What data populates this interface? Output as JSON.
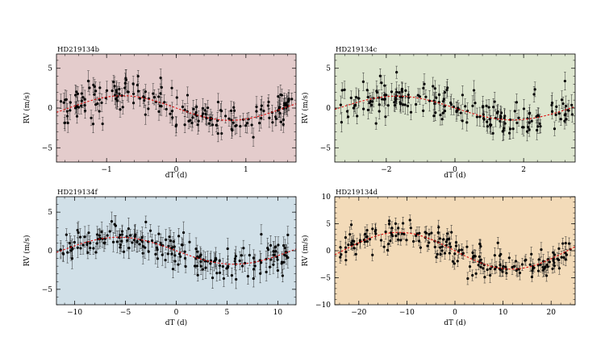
{
  "figure": {
    "description_note": "Four phase-folded radial velocity panels",
    "colors": {
      "panel_b_bg": "#e4cccc",
      "panel_c_bg": "#dde6cf",
      "panel_f_bg": "#d1e0e8",
      "panel_d_bg": "#f3dbb9",
      "points": "#000000",
      "model": "#dd1111"
    }
  },
  "chart_data": [
    {
      "id": "b",
      "type": "scatter",
      "title": "HD219134b",
      "xlabel": "dT (d)",
      "ylabel": "RV (m/s)",
      "xlim": [
        -1.72,
        1.72
      ],
      "ylim": [
        -6.8,
        6.8
      ],
      "xticks": [
        -1,
        0,
        1
      ],
      "xtick_labels": [
        "−1",
        "0",
        "1"
      ],
      "yticks": [
        -5,
        0,
        5
      ],
      "ytick_labels": [
        "−5",
        "0",
        "5"
      ],
      "model": {
        "amplitude": 1.55,
        "period": 3.09,
        "phase_offset": 0
      },
      "scatter_sigma": 1.1,
      "n_points": 190,
      "error_bar": 1.0
    },
    {
      "id": "c",
      "type": "scatter",
      "title": "HD219134c",
      "xlabel": "dT (d)",
      "ylabel": "RV (m/s)",
      "xlim": [
        -3.5,
        3.5
      ],
      "ylim": [
        -6.8,
        6.8
      ],
      "xticks": [
        -2,
        0,
        2
      ],
      "xtick_labels": [
        "−2",
        "0",
        "2"
      ],
      "yticks": [
        -5,
        0,
        5
      ],
      "ytick_labels": [
        "−5",
        "0",
        "5"
      ],
      "model": {
        "amplitude": 1.5,
        "period": 6.76,
        "phase_offset": 0
      },
      "scatter_sigma": 1.1,
      "n_points": 190,
      "error_bar": 1.0
    },
    {
      "id": "f",
      "type": "scatter",
      "title": "HD219134f",
      "xlabel": "dT (d)",
      "ylabel": "RV (m/s)",
      "xlim": [
        -11.8,
        11.8
      ],
      "ylim": [
        -7.0,
        7.0
      ],
      "xticks": [
        -10,
        -5,
        0,
        5,
        10
      ],
      "xtick_labels": [
        "−10",
        "−5",
        "0",
        "5",
        "10"
      ],
      "yticks": [
        -5,
        0,
        5
      ],
      "ytick_labels": [
        "−5",
        "0",
        "5"
      ],
      "model": {
        "amplitude": 1.75,
        "period": 22.7,
        "phase_offset": 0
      },
      "scatter_sigma": 1.2,
      "n_points": 200,
      "error_bar": 1.1
    },
    {
      "id": "d",
      "type": "scatter",
      "title": "HD219134d",
      "xlabel": "dT (d)",
      "ylabel": "RV (m/s)",
      "xlim": [
        -25,
        25
      ],
      "ylim": [
        -10,
        10
      ],
      "xticks": [
        -20,
        -10,
        0,
        10,
        20
      ],
      "xtick_labels": [
        "−20",
        "−10",
        "0",
        "10",
        "20"
      ],
      "yticks": [
        -10,
        -5,
        0,
        5,
        10
      ],
      "ytick_labels": [
        "−10",
        "−5",
        "0",
        "5",
        "10"
      ],
      "model": {
        "amplitude": 3.4,
        "period": 46.7,
        "phase_offset": 0
      },
      "scatter_sigma": 1.4,
      "n_points": 200,
      "error_bar": 1.1
    }
  ]
}
